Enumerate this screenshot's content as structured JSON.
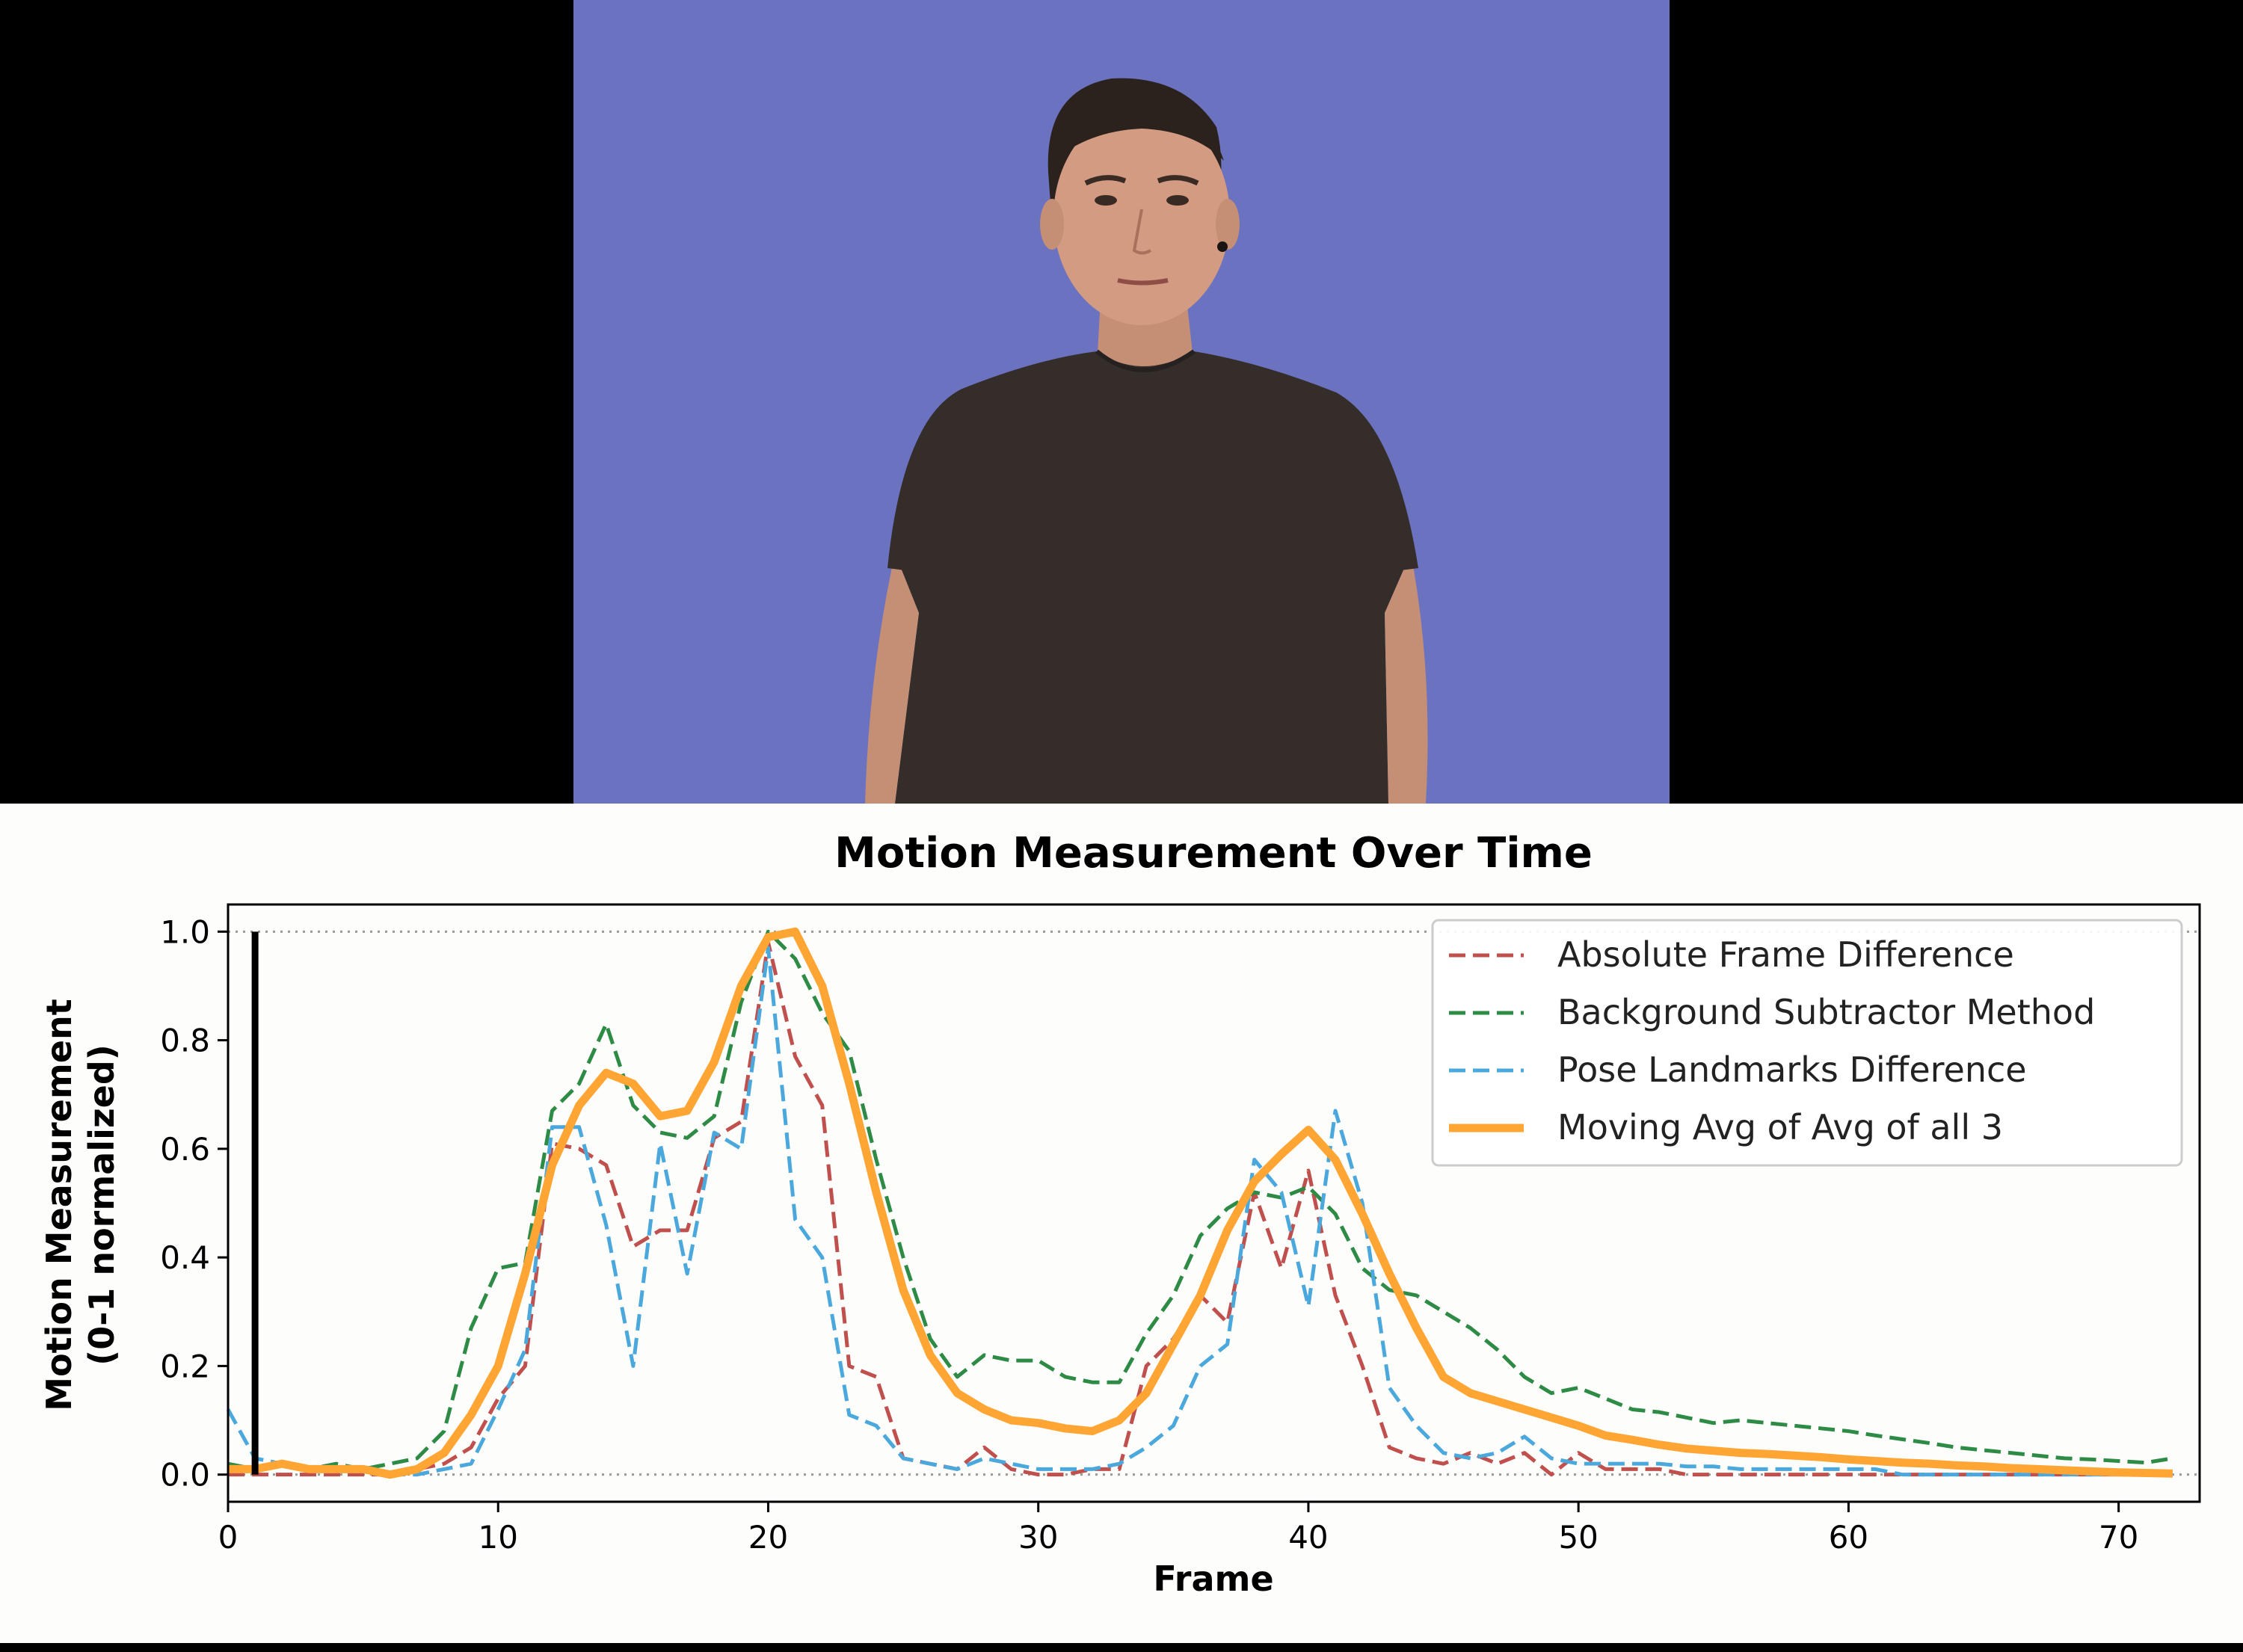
{
  "chart_data": {
    "type": "line",
    "title": "Motion Measurement Over Time",
    "xlabel": "Frame",
    "ylabel_lines": [
      "Motion Measurement",
      "(0-1 normalized)"
    ],
    "xlim": [
      0,
      73
    ],
    "ylim": [
      -0.05,
      1.05
    ],
    "xticks": [
      0,
      10,
      20,
      30,
      40,
      50,
      60,
      70
    ],
    "yticks": [
      0.0,
      0.2,
      0.4,
      0.6,
      0.8,
      1.0
    ],
    "ytick_labels": [
      "0.0",
      "0.2",
      "0.4",
      "0.6",
      "0.8",
      "1.0"
    ],
    "reference_lines": [
      0.0,
      1.0
    ],
    "current_frame": 1,
    "legend_position": "upper right",
    "series": [
      {
        "name": "Absolute Frame Difference",
        "color": "#c0504d",
        "style": "dashed",
        "x": [
          0,
          1,
          2,
          3,
          4,
          5,
          6,
          7,
          8,
          9,
          10,
          11,
          12,
          13,
          14,
          15,
          16,
          17,
          18,
          19,
          20,
          21,
          22,
          23,
          24,
          25,
          26,
          27,
          28,
          29,
          30,
          31,
          32,
          33,
          34,
          35,
          36,
          37,
          38,
          39,
          40,
          41,
          42,
          43,
          44,
          45,
          46,
          47,
          48,
          49,
          50,
          51,
          52,
          53,
          54,
          55,
          56,
          57,
          58,
          59,
          60,
          61,
          62,
          63,
          64,
          65,
          66,
          67,
          68,
          69,
          70,
          71,
          72
        ],
        "values": [
          0.0,
          0.0,
          0.0,
          0.0,
          0.0,
          0.0,
          0.0,
          0.01,
          0.02,
          0.05,
          0.14,
          0.2,
          0.61,
          0.6,
          0.57,
          0.42,
          0.45,
          0.45,
          0.62,
          0.65,
          0.98,
          0.77,
          0.68,
          0.2,
          0.18,
          0.03,
          0.02,
          0.01,
          0.05,
          0.01,
          0.0,
          0.0,
          0.01,
          0.01,
          0.2,
          0.25,
          0.33,
          0.28,
          0.52,
          0.38,
          0.56,
          0.33,
          0.2,
          0.05,
          0.03,
          0.02,
          0.04,
          0.02,
          0.04,
          0.0,
          0.04,
          0.01,
          0.01,
          0.01,
          0.0,
          0.0,
          0.0,
          0.0,
          0.0,
          0.0,
          0.0,
          0.0,
          0.0,
          0.0,
          0.0,
          0.0,
          0.0,
          0.0,
          0.0,
          0.0,
          0.0,
          0.0,
          0.0
        ]
      },
      {
        "name": "Background Subtractor Method",
        "color": "#2e8b46",
        "style": "dashed",
        "x": [
          0,
          1,
          2,
          3,
          4,
          5,
          6,
          7,
          8,
          9,
          10,
          11,
          12,
          13,
          14,
          15,
          16,
          17,
          18,
          19,
          20,
          21,
          22,
          23,
          24,
          25,
          26,
          27,
          28,
          29,
          30,
          31,
          32,
          33,
          34,
          35,
          36,
          37,
          38,
          39,
          40,
          41,
          42,
          43,
          44,
          45,
          46,
          47,
          48,
          49,
          50,
          51,
          52,
          53,
          54,
          55,
          56,
          57,
          58,
          59,
          60,
          61,
          62,
          63,
          64,
          65,
          66,
          67,
          68,
          69,
          70,
          71,
          72
        ],
        "values": [
          0.02,
          0.01,
          0.02,
          0.01,
          0.02,
          0.01,
          0.02,
          0.03,
          0.08,
          0.27,
          0.38,
          0.39,
          0.67,
          0.72,
          0.83,
          0.68,
          0.63,
          0.62,
          0.66,
          0.87,
          1.0,
          0.95,
          0.85,
          0.78,
          0.58,
          0.4,
          0.25,
          0.18,
          0.22,
          0.21,
          0.21,
          0.18,
          0.17,
          0.17,
          0.26,
          0.33,
          0.44,
          0.49,
          0.52,
          0.51,
          0.53,
          0.48,
          0.38,
          0.34,
          0.33,
          0.3,
          0.27,
          0.23,
          0.18,
          0.15,
          0.16,
          0.14,
          0.12,
          0.115,
          0.105,
          0.095,
          0.1,
          0.095,
          0.09,
          0.085,
          0.08,
          0.072,
          0.065,
          0.058,
          0.05,
          0.045,
          0.04,
          0.035,
          0.03,
          0.028,
          0.025,
          0.022,
          0.03
        ]
      },
      {
        "name": "Pose Landmarks Difference",
        "color": "#4ba8dc",
        "style": "dashed",
        "x": [
          0,
          1,
          2,
          3,
          4,
          5,
          6,
          7,
          8,
          9,
          10,
          11,
          12,
          13,
          14,
          15,
          16,
          17,
          18,
          19,
          20,
          21,
          22,
          23,
          24,
          25,
          26,
          27,
          28,
          29,
          30,
          31,
          32,
          33,
          34,
          35,
          36,
          37,
          38,
          39,
          40,
          41,
          42,
          43,
          44,
          45,
          46,
          47,
          48,
          49,
          50,
          51,
          52,
          53,
          54,
          55,
          56,
          57,
          58,
          59,
          60,
          61,
          62,
          63,
          64,
          65,
          66,
          67,
          68,
          69,
          70,
          71,
          72
        ],
        "values": [
          0.12,
          0.03,
          0.02,
          0.01,
          0.01,
          0.01,
          0.0,
          0.0,
          0.01,
          0.02,
          0.12,
          0.23,
          0.64,
          0.64,
          0.46,
          0.2,
          0.61,
          0.37,
          0.63,
          0.6,
          0.97,
          0.47,
          0.4,
          0.11,
          0.09,
          0.03,
          0.02,
          0.01,
          0.03,
          0.02,
          0.01,
          0.01,
          0.01,
          0.02,
          0.05,
          0.09,
          0.2,
          0.24,
          0.58,
          0.52,
          0.31,
          0.67,
          0.5,
          0.16,
          0.09,
          0.04,
          0.03,
          0.04,
          0.07,
          0.03,
          0.02,
          0.02,
          0.02,
          0.02,
          0.015,
          0.015,
          0.01,
          0.01,
          0.01,
          0.01,
          0.01,
          0.01,
          0.0,
          0.0,
          0.0,
          0.0,
          0.0,
          0.0,
          0.0,
          0.0,
          0.0,
          0.0,
          0.0
        ]
      },
      {
        "name": "Moving Avg of Avg of all 3",
        "color": "#ffa534",
        "style": "solid",
        "x": [
          0,
          1,
          2,
          3,
          4,
          5,
          6,
          7,
          8,
          9,
          10,
          11,
          12,
          13,
          14,
          15,
          16,
          17,
          18,
          19,
          20,
          21,
          22,
          23,
          24,
          25,
          26,
          27,
          28,
          29,
          30,
          31,
          32,
          33,
          34,
          35,
          36,
          37,
          38,
          39,
          40,
          41,
          42,
          43,
          44,
          45,
          46,
          47,
          48,
          49,
          50,
          51,
          52,
          53,
          54,
          55,
          56,
          57,
          58,
          59,
          60,
          61,
          62,
          63,
          64,
          65,
          66,
          67,
          68,
          69,
          70,
          71,
          72
        ],
        "values": [
          0.01,
          0.01,
          0.02,
          0.01,
          0.01,
          0.01,
          0.0,
          0.01,
          0.04,
          0.11,
          0.2,
          0.37,
          0.57,
          0.68,
          0.74,
          0.72,
          0.66,
          0.67,
          0.76,
          0.9,
          0.99,
          1.0,
          0.9,
          0.72,
          0.52,
          0.34,
          0.22,
          0.15,
          0.12,
          0.1,
          0.095,
          0.085,
          0.08,
          0.1,
          0.15,
          0.24,
          0.33,
          0.45,
          0.54,
          0.59,
          0.635,
          0.58,
          0.48,
          0.37,
          0.27,
          0.18,
          0.15,
          0.135,
          0.12,
          0.105,
          0.09,
          0.072,
          0.064,
          0.055,
          0.048,
          0.044,
          0.04,
          0.038,
          0.035,
          0.032,
          0.028,
          0.025,
          0.022,
          0.02,
          0.017,
          0.015,
          0.012,
          0.01,
          0.008,
          0.006,
          0.004,
          0.003,
          0.002
        ]
      }
    ]
  }
}
